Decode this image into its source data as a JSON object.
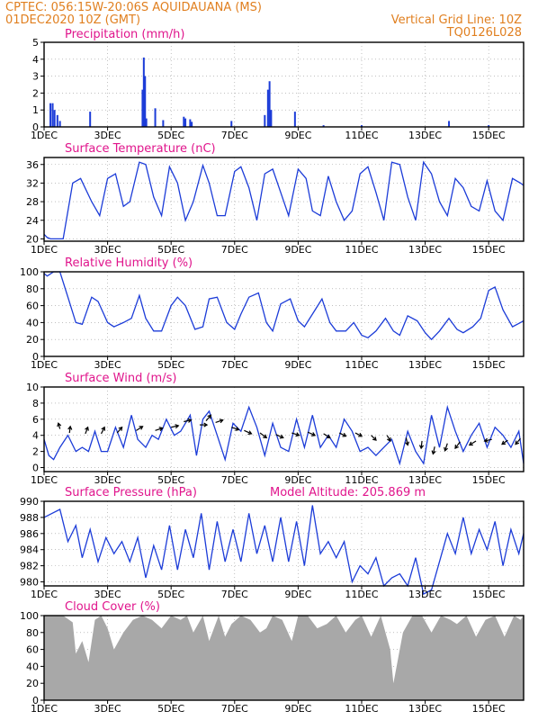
{
  "header": {
    "line1_left": "CPTEC:   056:15W-20:06S   AQUIDAUANA (MS)",
    "line2_left": "01DEC2020 10Z (GMT)",
    "line1_right": "Vertical Grid Line: 10Z",
    "line2_right": "TQ0126L028"
  },
  "colors": {
    "orange": "#e07f1f",
    "magenta": "#e0158c",
    "blue": "#1c3cd8",
    "black": "#000000",
    "gray": "#a8a8a8",
    "grid": "#9a9a9a"
  },
  "x_axis": {
    "tick_labels": [
      "1DEC",
      "3DEC",
      "5DEC",
      "7DEC",
      "9DEC",
      "11DEC",
      "13DEC",
      "15DEC"
    ],
    "tick_days": [
      1,
      3,
      5,
      7,
      9,
      11,
      13,
      15
    ],
    "range_days": [
      1,
      16.1
    ]
  },
  "chart_data": [
    {
      "id": "precip",
      "type": "bar",
      "title": "Precipitation (mm/h)",
      "ylim": [
        0,
        5
      ],
      "yticks": [
        0,
        1,
        2,
        3,
        4,
        5
      ],
      "bars": [
        [
          1.2,
          1.4
        ],
        [
          1.27,
          1.4
        ],
        [
          1.33,
          1.0
        ],
        [
          1.42,
          0.7
        ],
        [
          1.5,
          0.35
        ],
        [
          2.45,
          0.9
        ],
        [
          4.1,
          2.2
        ],
        [
          4.14,
          4.1
        ],
        [
          4.18,
          3.0
        ],
        [
          4.22,
          0.5
        ],
        [
          4.5,
          1.1
        ],
        [
          4.75,
          0.4
        ],
        [
          5.4,
          0.6
        ],
        [
          5.45,
          0.5
        ],
        [
          5.6,
          0.45
        ],
        [
          5.65,
          0.3
        ],
        [
          6.9,
          0.35
        ],
        [
          7.95,
          0.7
        ],
        [
          8.05,
          2.2
        ],
        [
          8.1,
          2.7
        ],
        [
          8.15,
          1.0
        ],
        [
          8.9,
          0.9
        ],
        [
          13.75,
          0.35
        ],
        [
          9.8,
          0.1
        ],
        [
          11.0,
          0.1
        ],
        [
          15.0,
          0.1
        ]
      ]
    },
    {
      "id": "temp",
      "type": "line",
      "title": "Surface Temperature (nC)",
      "ylim": [
        19.5,
        37.5
      ],
      "yticks": [
        20,
        24,
        28,
        32,
        36
      ],
      "x": [
        1.0,
        1.1,
        1.2,
        1.4,
        1.6,
        1.9,
        2.15,
        2.5,
        2.75,
        3.0,
        3.25,
        3.5,
        3.7,
        4.0,
        4.2,
        4.45,
        4.7,
        4.95,
        5.2,
        5.45,
        5.7,
        6.0,
        6.2,
        6.45,
        6.7,
        7.0,
        7.2,
        7.45,
        7.7,
        7.95,
        8.2,
        8.45,
        8.7,
        9.0,
        9.25,
        9.45,
        9.7,
        9.95,
        10.2,
        10.45,
        10.7,
        10.95,
        11.2,
        11.45,
        11.7,
        11.95,
        12.2,
        12.45,
        12.7,
        12.95,
        13.2,
        13.45,
        13.7,
        13.95,
        14.2,
        14.45,
        14.7,
        14.95,
        15.2,
        15.45,
        15.75,
        16.0,
        16.1
      ],
      "y": [
        21,
        20.3,
        20,
        20,
        20,
        32,
        33,
        28,
        25,
        33,
        34,
        27,
        28,
        36.5,
        36,
        29,
        25,
        35.5,
        32,
        24,
        28,
        35.8,
        32,
        25,
        25,
        34.5,
        35.5,
        31,
        24,
        34,
        35,
        30,
        25,
        35,
        33,
        26,
        25,
        33.5,
        28,
        24,
        26,
        34,
        35.5,
        30,
        24,
        36.5,
        36,
        29,
        24,
        36.5,
        34,
        28,
        25,
        33,
        31,
        27,
        26,
        32.5,
        26,
        24,
        33,
        32,
        31.5
      ]
    },
    {
      "id": "rh",
      "type": "line",
      "title": "Relative Humidity (%)",
      "ylim": [
        0,
        100
      ],
      "yticks": [
        0,
        20,
        40,
        60,
        80,
        100
      ],
      "x": [
        1.0,
        1.1,
        1.3,
        1.5,
        1.75,
        2.0,
        2.2,
        2.5,
        2.7,
        3.0,
        3.2,
        3.5,
        3.75,
        4.0,
        4.2,
        4.45,
        4.7,
        5.0,
        5.2,
        5.45,
        5.75,
        6.0,
        6.2,
        6.45,
        6.75,
        7.0,
        7.2,
        7.45,
        7.75,
        8.0,
        8.2,
        8.45,
        8.75,
        9.0,
        9.2,
        9.45,
        9.75,
        10.0,
        10.2,
        10.5,
        10.75,
        11.0,
        11.2,
        11.45,
        11.75,
        12.0,
        12.2,
        12.45,
        12.75,
        13.0,
        13.2,
        13.45,
        13.75,
        14.0,
        14.2,
        14.5,
        14.75,
        15.0,
        15.2,
        15.45,
        15.75,
        16.0,
        16.1
      ],
      "y": [
        98,
        95,
        100,
        100,
        70,
        40,
        38,
        70,
        65,
        40,
        35,
        40,
        45,
        72,
        45,
        30,
        30,
        60,
        70,
        60,
        32,
        35,
        68,
        70,
        40,
        32,
        50,
        70,
        75,
        40,
        30,
        62,
        68,
        42,
        35,
        50,
        68,
        40,
        30,
        30,
        40,
        25,
        22,
        30,
        45,
        30,
        25,
        48,
        42,
        28,
        20,
        30,
        45,
        32,
        28,
        35,
        45,
        78,
        82,
        55,
        35,
        40,
        42
      ]
    },
    {
      "id": "wind",
      "type": "line",
      "title": "Surface Wind (m/s)",
      "ylim": [
        -0.5,
        10
      ],
      "yticks": [
        0,
        2,
        4,
        6,
        8,
        10
      ],
      "x": [
        1.0,
        1.15,
        1.3,
        1.5,
        1.75,
        2.0,
        2.2,
        2.4,
        2.6,
        2.8,
        3.0,
        3.25,
        3.5,
        3.75,
        3.95,
        4.2,
        4.4,
        4.6,
        4.85,
        5.1,
        5.3,
        5.6,
        5.8,
        6.0,
        6.2,
        6.45,
        6.7,
        6.95,
        7.2,
        7.45,
        7.7,
        7.95,
        8.2,
        8.45,
        8.7,
        8.95,
        9.2,
        9.45,
        9.7,
        9.95,
        10.2,
        10.45,
        10.7,
        10.95,
        11.2,
        11.45,
        11.7,
        11.95,
        12.2,
        12.45,
        12.7,
        12.95,
        13.2,
        13.45,
        13.7,
        13.95,
        14.2,
        14.45,
        14.7,
        14.95,
        15.2,
        15.45,
        15.7,
        15.95,
        16.1
      ],
      "y": [
        3.5,
        1.5,
        1.0,
        2.5,
        4.0,
        2.0,
        2.5,
        2.0,
        4.5,
        2.0,
        2.0,
        5.0,
        2.5,
        6.5,
        3.5,
        2.5,
        4.0,
        3.5,
        6.0,
        4.0,
        4.5,
        6.5,
        1.5,
        6.0,
        7.0,
        4.0,
        1.0,
        5.5,
        4.5,
        7.5,
        5.0,
        1.5,
        5.5,
        2.5,
        2.0,
        6.0,
        2.5,
        6.5,
        2.5,
        4.0,
        2.5,
        6.0,
        4.5,
        2.0,
        2.5,
        1.5,
        2.5,
        3.5,
        0.5,
        4.5,
        2.0,
        0.5,
        6.5,
        2.5,
        7.5,
        4.5,
        2.0,
        4.0,
        5.5,
        2.5,
        5.0,
        4.0,
        2.5,
        4.5,
        0.5
      ]
    },
    {
      "id": "pressure",
      "type": "line",
      "title": "Surface Pressure (hPa)",
      "annotation": "Model Altitude: 205.869  m",
      "ylim": [
        979.5,
        990
      ],
      "yticks": [
        980,
        982,
        984,
        986,
        988,
        990
      ],
      "x": [
        1.0,
        1.25,
        1.5,
        1.75,
        2.0,
        2.2,
        2.45,
        2.7,
        2.95,
        3.2,
        3.45,
        3.7,
        3.95,
        4.2,
        4.45,
        4.7,
        4.95,
        5.2,
        5.45,
        5.7,
        5.95,
        6.2,
        6.45,
        6.7,
        6.95,
        7.2,
        7.45,
        7.7,
        7.95,
        8.2,
        8.45,
        8.7,
        8.95,
        9.2,
        9.45,
        9.7,
        9.95,
        10.2,
        10.45,
        10.7,
        10.95,
        11.2,
        11.45,
        11.7,
        11.95,
        12.2,
        12.45,
        12.7,
        12.95,
        13.2,
        13.45,
        13.7,
        13.95,
        14.2,
        14.45,
        14.7,
        14.95,
        15.2,
        15.45,
        15.7,
        15.95,
        16.1
      ],
      "y": [
        988,
        988.5,
        989,
        985,
        987,
        983,
        986.5,
        982.5,
        985.5,
        983.5,
        985,
        982.5,
        985.5,
        980.5,
        984.5,
        981.5,
        987,
        981.5,
        986.5,
        983,
        988.5,
        981.5,
        987.5,
        982.5,
        986.5,
        982.5,
        988.5,
        983.5,
        987,
        982.5,
        988,
        982.5,
        987.5,
        982,
        989.5,
        983.5,
        985,
        983,
        985,
        980,
        982,
        981,
        983,
        979.5,
        980.5,
        981,
        979.5,
        983,
        978.5,
        979,
        982.5,
        986,
        983.5,
        988,
        983.5,
        986.5,
        984,
        987.5,
        982,
        986.5,
        983.5,
        986
      ]
    },
    {
      "id": "cloud",
      "type": "area",
      "title": "Cloud Cover (%)",
      "ylim": [
        0,
        100
      ],
      "yticks": [
        0,
        20,
        40,
        60,
        80,
        100
      ],
      "x": [
        1.0,
        1.3,
        1.6,
        1.9,
        2.0,
        2.2,
        2.4,
        2.6,
        2.8,
        3.0,
        3.2,
        3.5,
        3.8,
        4.1,
        4.4,
        4.7,
        5.0,
        5.3,
        5.5,
        5.7,
        6.0,
        6.2,
        6.5,
        6.7,
        6.9,
        7.2,
        7.5,
        7.8,
        8.0,
        8.2,
        8.5,
        8.8,
        9.0,
        9.3,
        9.6,
        9.9,
        10.2,
        10.5,
        10.8,
        11.0,
        11.3,
        11.6,
        11.9,
        12.0,
        12.3,
        12.6,
        12.9,
        13.2,
        13.5,
        13.8,
        14.0,
        14.3,
        14.6,
        14.9,
        15.2,
        15.5,
        15.8,
        16.0,
        16.1
      ],
      "y": [
        100,
        100,
        100,
        92,
        55,
        70,
        45,
        95,
        100,
        85,
        60,
        80,
        95,
        100,
        95,
        85,
        100,
        95,
        100,
        80,
        100,
        70,
        100,
        75,
        90,
        100,
        95,
        80,
        85,
        100,
        95,
        70,
        100,
        100,
        85,
        90,
        100,
        80,
        95,
        100,
        75,
        100,
        60,
        20,
        80,
        100,
        100,
        80,
        100,
        95,
        90,
        100,
        75,
        95,
        100,
        75,
        100,
        95,
        100
      ]
    }
  ]
}
